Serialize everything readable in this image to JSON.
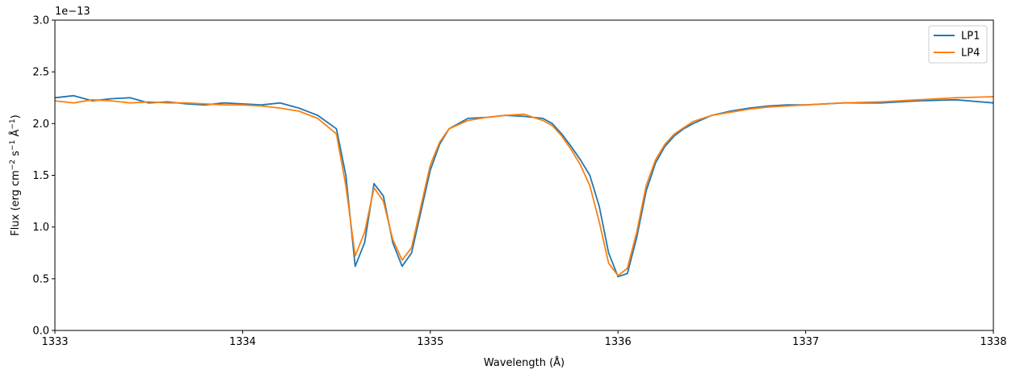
{
  "chart_data": {
    "type": "line",
    "title": "",
    "xlabel": "Wavelength (Å)",
    "ylabel_parts": [
      "Flux (erg cm",
      "−2",
      " s",
      "−1",
      " Å",
      "−1",
      ")"
    ],
    "offset_text": "1e−13",
    "xlim": [
      1333,
      1338
    ],
    "ylim": [
      0.0,
      3.0
    ],
    "x_ticks": [
      1333,
      1334,
      1335,
      1336,
      1337,
      1338
    ],
    "x_tick_labels": [
      "1333",
      "1334",
      "1335",
      "1336",
      "1337",
      "1338"
    ],
    "y_ticks": [
      0.0,
      0.5,
      1.0,
      1.5,
      2.0,
      2.5,
      3.0
    ],
    "y_tick_labels": [
      "0.0",
      "0.5",
      "1.0",
      "1.5",
      "2.0",
      "2.5",
      "3.0"
    ],
    "grid": false,
    "legend_position": "top-right",
    "series": [
      {
        "name": "LP1",
        "color": "#1f77b4",
        "x": [
          1333.0,
          1333.1,
          1333.2,
          1333.3,
          1333.4,
          1333.5,
          1333.6,
          1333.7,
          1333.8,
          1333.9,
          1334.0,
          1334.1,
          1334.2,
          1334.3,
          1334.4,
          1334.5,
          1334.55,
          1334.6,
          1334.65,
          1334.7,
          1334.75,
          1334.8,
          1334.85,
          1334.9,
          1334.95,
          1335.0,
          1335.05,
          1335.1,
          1335.2,
          1335.3,
          1335.4,
          1335.5,
          1335.6,
          1335.65,
          1335.7,
          1335.75,
          1335.8,
          1335.85,
          1335.9,
          1335.95,
          1336.0,
          1336.05,
          1336.1,
          1336.15,
          1336.2,
          1336.25,
          1336.3,
          1336.35,
          1336.4,
          1336.5,
          1336.6,
          1336.7,
          1336.8,
          1336.9,
          1337.0,
          1337.2,
          1337.4,
          1337.6,
          1337.8,
          1338.0
        ],
        "y": [
          2.25,
          2.27,
          2.22,
          2.24,
          2.25,
          2.2,
          2.21,
          2.19,
          2.18,
          2.2,
          2.19,
          2.18,
          2.2,
          2.15,
          2.08,
          1.95,
          1.5,
          0.62,
          0.85,
          1.42,
          1.3,
          0.85,
          0.62,
          0.75,
          1.15,
          1.55,
          1.8,
          1.95,
          2.05,
          2.06,
          2.08,
          2.07,
          2.05,
          2.0,
          1.9,
          1.78,
          1.65,
          1.5,
          1.2,
          0.75,
          0.52,
          0.55,
          0.9,
          1.35,
          1.62,
          1.78,
          1.88,
          1.95,
          2.0,
          2.08,
          2.12,
          2.15,
          2.17,
          2.18,
          2.18,
          2.2,
          2.2,
          2.22,
          2.23,
          2.2
        ]
      },
      {
        "name": "LP4",
        "color": "#ff7f0e",
        "x": [
          1333.0,
          1333.1,
          1333.2,
          1333.3,
          1333.4,
          1333.5,
          1333.6,
          1333.7,
          1333.8,
          1333.9,
          1334.0,
          1334.1,
          1334.2,
          1334.3,
          1334.4,
          1334.5,
          1334.55,
          1334.6,
          1334.65,
          1334.7,
          1334.75,
          1334.8,
          1334.85,
          1334.9,
          1334.95,
          1335.0,
          1335.05,
          1335.1,
          1335.2,
          1335.3,
          1335.4,
          1335.5,
          1335.6,
          1335.65,
          1335.7,
          1335.75,
          1335.8,
          1335.85,
          1335.9,
          1335.95,
          1336.0,
          1336.05,
          1336.1,
          1336.15,
          1336.2,
          1336.25,
          1336.3,
          1336.35,
          1336.4,
          1336.5,
          1336.6,
          1336.7,
          1336.8,
          1336.9,
          1337.0,
          1337.2,
          1337.4,
          1337.6,
          1337.8,
          1338.0
        ],
        "y": [
          2.22,
          2.2,
          2.23,
          2.22,
          2.2,
          2.21,
          2.2,
          2.2,
          2.19,
          2.18,
          2.18,
          2.17,
          2.15,
          2.12,
          2.05,
          1.9,
          1.4,
          0.72,
          0.95,
          1.38,
          1.25,
          0.88,
          0.68,
          0.8,
          1.2,
          1.6,
          1.82,
          1.95,
          2.03,
          2.06,
          2.08,
          2.09,
          2.03,
          1.98,
          1.88,
          1.75,
          1.6,
          1.4,
          1.05,
          0.65,
          0.53,
          0.6,
          0.95,
          1.4,
          1.65,
          1.8,
          1.9,
          1.96,
          2.02,
          2.08,
          2.11,
          2.14,
          2.16,
          2.17,
          2.18,
          2.2,
          2.21,
          2.23,
          2.25,
          2.26
        ]
      }
    ]
  }
}
